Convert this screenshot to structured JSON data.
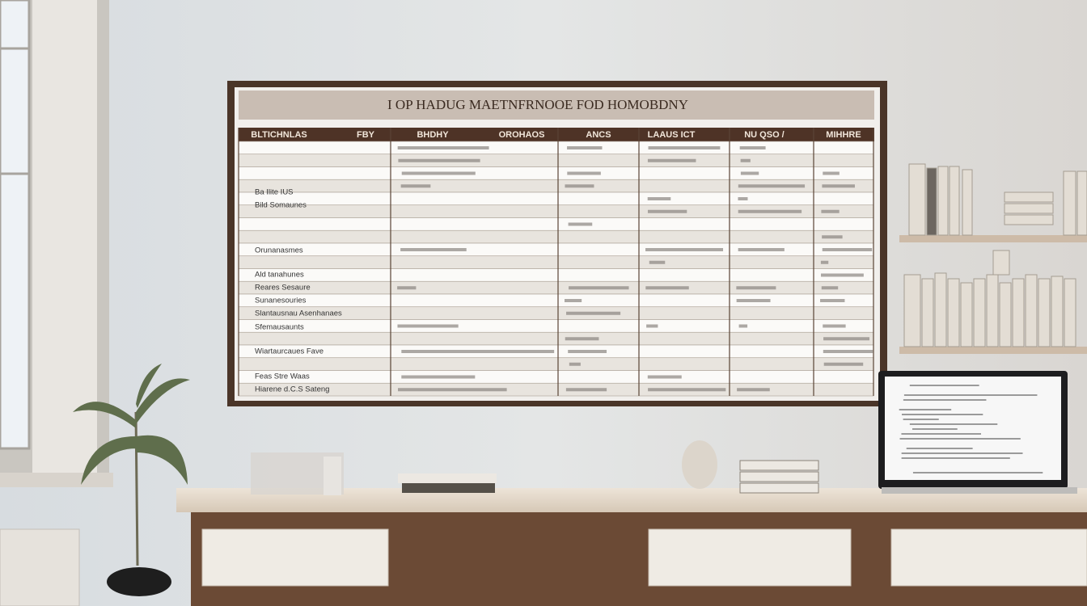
{
  "board": {
    "title": "I OP HADUG  MAETNFRNOOE FOD HOMOBDNY",
    "headers": [
      "BLTICHNLAS",
      "FBY",
      "BHDHY",
      "OROHAOS",
      "ANCS",
      "LAAUS ICT",
      "NU QSO /",
      "MIHHRE"
    ],
    "rows": [
      "Ba Ilite IUS",
      "Bild Somaunes",
      "Orunanasmes",
      "Ald tanahunes",
      "Reares Sesaure",
      "Sunanesouries",
      "Slantausnau Asenhanaes",
      "Sfemausaunts",
      "Wiartaurcaues Fave",
      "Feas Stre Waas",
      "Hiarene d.C.S Sateng"
    ]
  }
}
